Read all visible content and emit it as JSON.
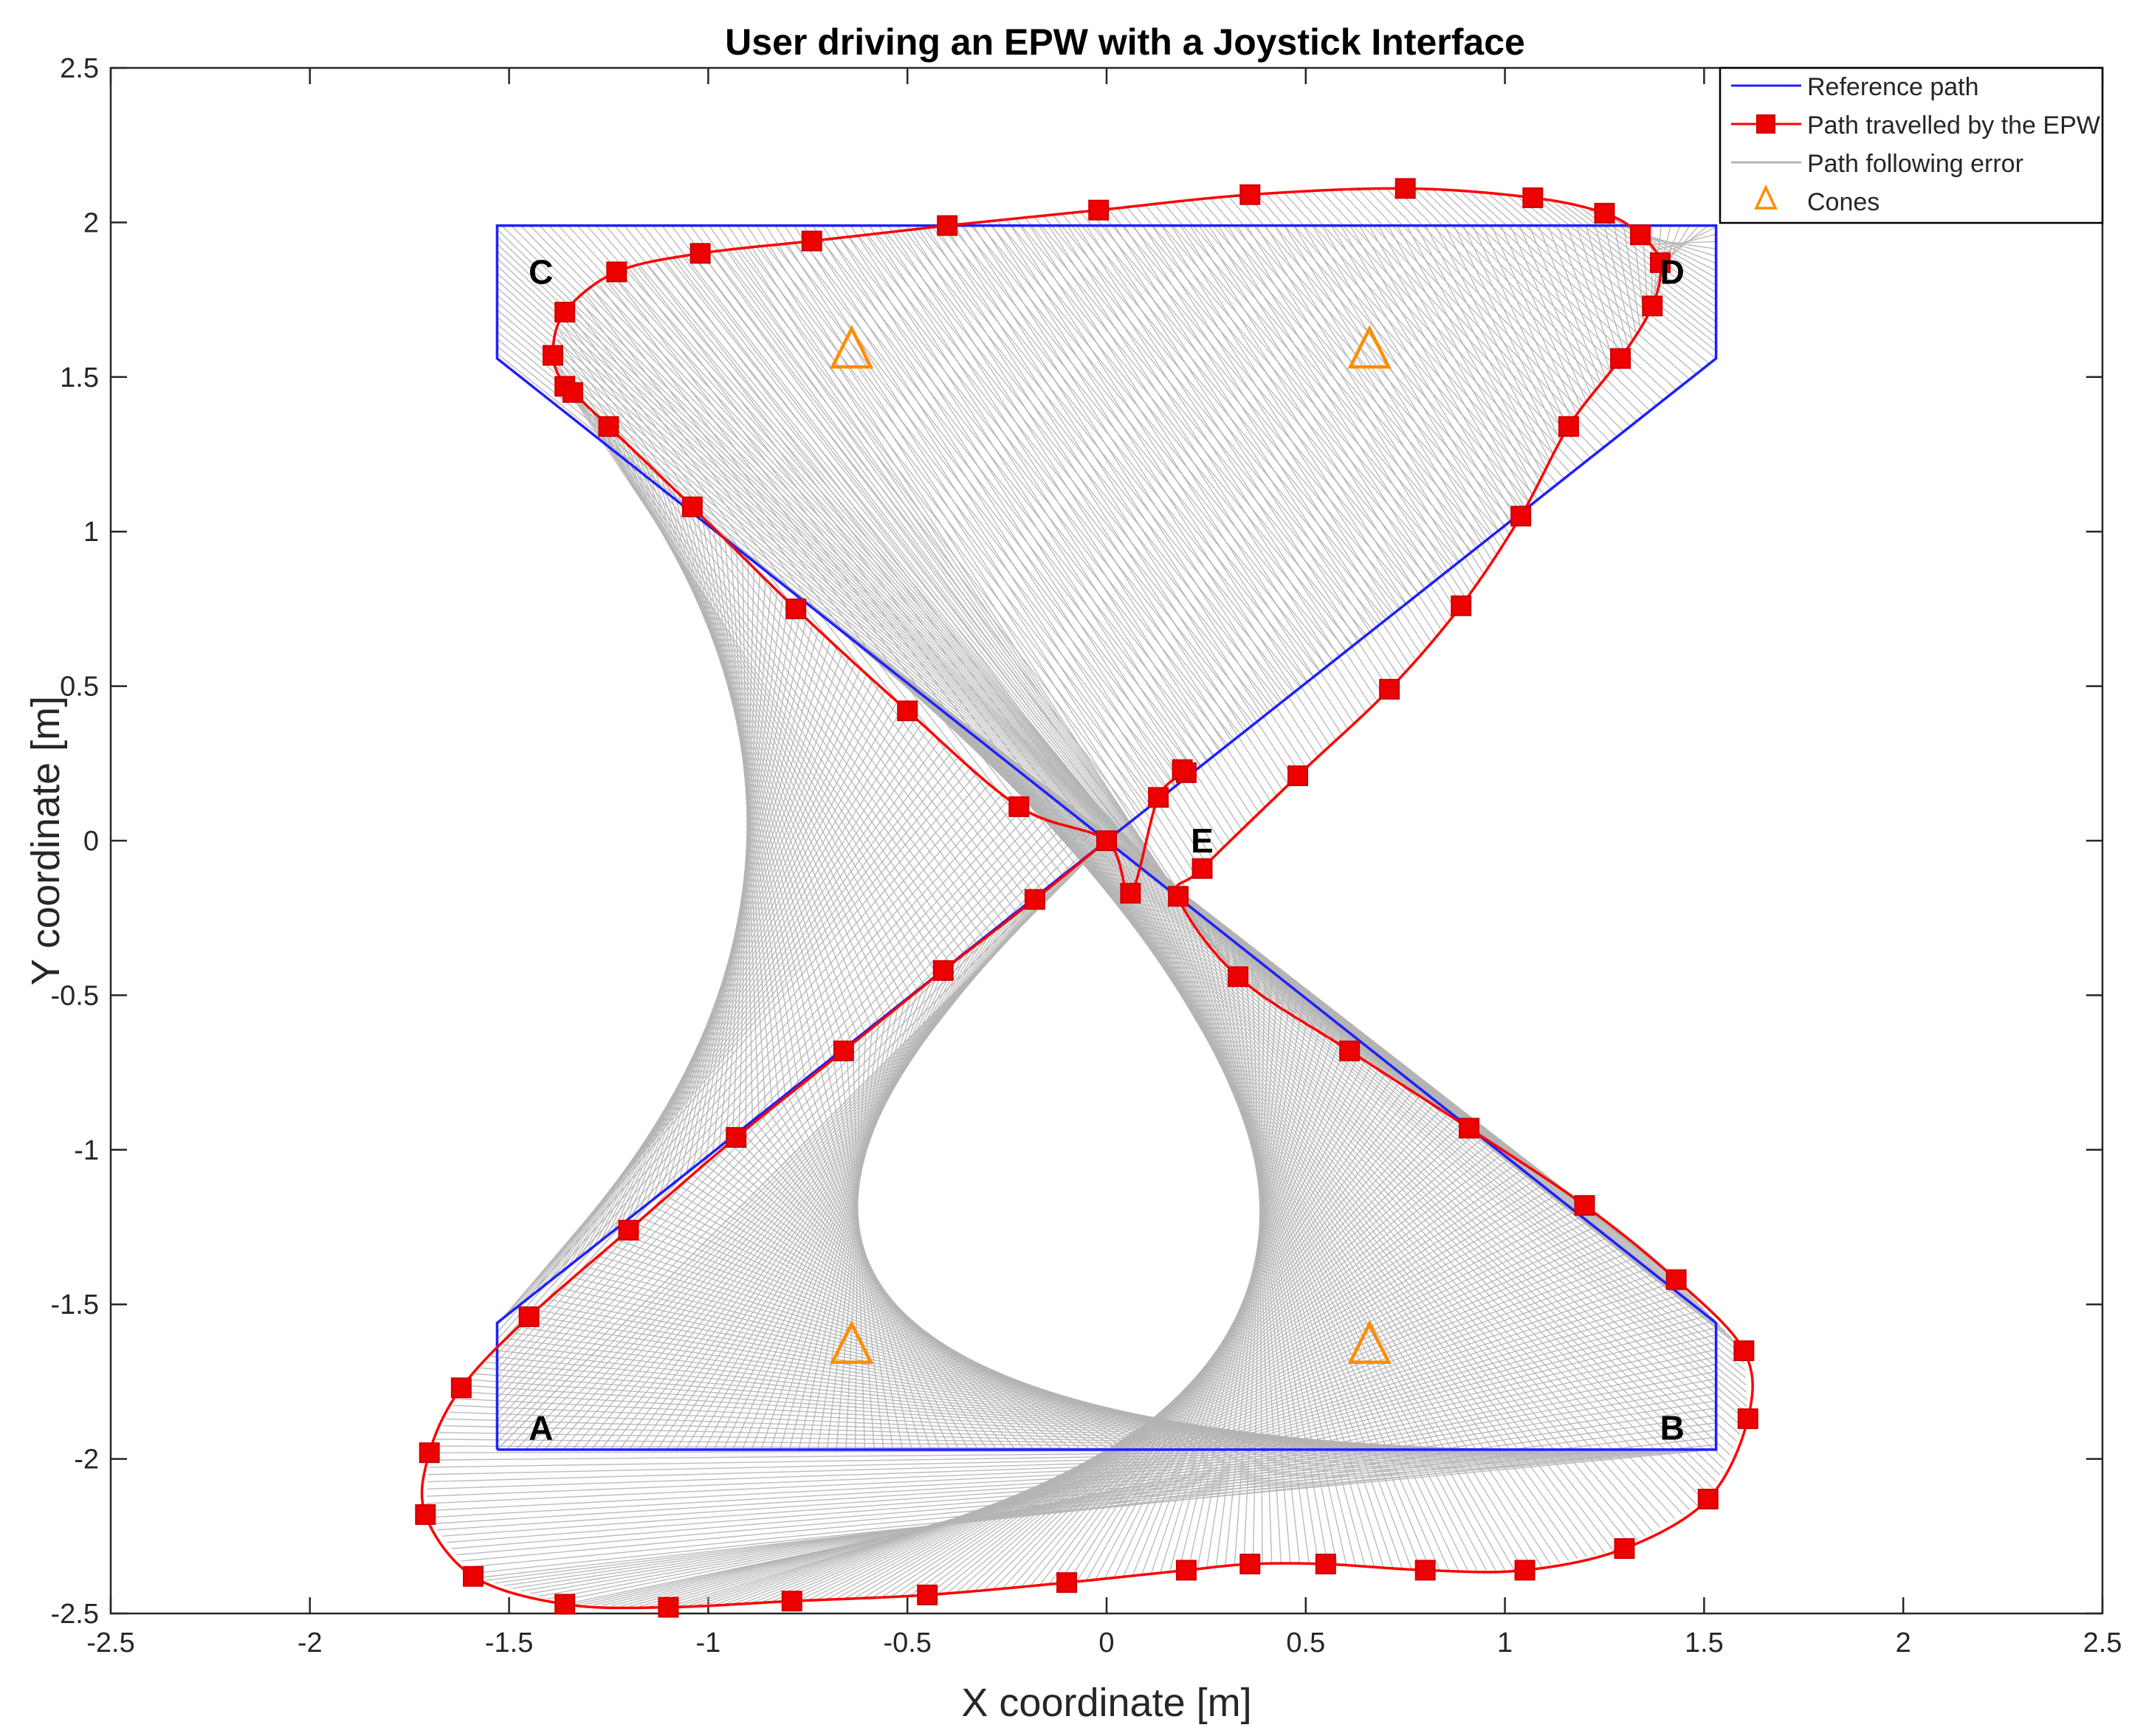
{
  "chart_data": {
    "type": "line",
    "title": "User driving an EPW with a Joystick Interface",
    "xlabel": "X coordinate [m]",
    "ylabel": "Y coordinate [m]",
    "xlim": [
      -2.5,
      2.5
    ],
    "ylim": [
      -2.5,
      2.5
    ],
    "xticks": [
      -2.5,
      -2,
      -1.5,
      -1,
      -0.5,
      0,
      0.5,
      1,
      1.5,
      2,
      2.5
    ],
    "yticks": [
      -2.5,
      -2,
      -1.5,
      -1,
      -0.5,
      0,
      0.5,
      1,
      1.5,
      2,
      2.5
    ],
    "xtick_labels": [
      "-2.5",
      "-2",
      "-1.5",
      "-1",
      "-0.5",
      "0",
      "0.5",
      "1",
      "1.5",
      "2",
      "2.5"
    ],
    "ytick_labels": [
      "-2.5",
      "-2",
      "-1.5",
      "-1",
      "-0.5",
      "0",
      "0.5",
      "1",
      "1.5",
      "2",
      "2.5"
    ],
    "grid": false,
    "legend_position": "top-right",
    "legend": [
      {
        "label": "Reference path",
        "marker": "line",
        "color": "#1f1fff"
      },
      {
        "label": "Path travelled by the EPW",
        "marker": "line-square",
        "color": "#ff0000"
      },
      {
        "label": "Path following error",
        "marker": "line",
        "color": "#b4b4b4"
      },
      {
        "label": "Cones",
        "marker": "triangle",
        "color": "#ff8c00"
      }
    ],
    "series": [
      {
        "name": "Reference path",
        "color": "#1f1fff",
        "points": [
          [
            -1.53,
            -1.97
          ],
          [
            1.53,
            -1.97
          ],
          [
            1.53,
            -1.56
          ],
          [
            -1.53,
            1.56
          ],
          [
            -1.53,
            1.99
          ],
          [
            1.53,
            1.99
          ],
          [
            1.53,
            1.56
          ],
          [
            -1.53,
            -1.56
          ],
          [
            -1.53,
            -1.97
          ]
        ]
      },
      {
        "name": "Path travelled by the EPW",
        "color": "#ff0000",
        "points": [
          [
            0,
            0
          ],
          [
            -0.18,
            -0.19
          ],
          [
            -0.41,
            -0.42
          ],
          [
            -0.66,
            -0.68
          ],
          [
            -0.93,
            -0.96
          ],
          [
            -1.2,
            -1.26
          ],
          [
            -1.45,
            -1.54
          ],
          [
            -1.62,
            -1.77
          ],
          [
            -1.7,
            -1.98
          ],
          [
            -1.71,
            -2.18
          ],
          [
            -1.59,
            -2.38
          ],
          [
            -1.36,
            -2.47
          ],
          [
            -1.1,
            -2.48
          ],
          [
            -0.79,
            -2.46
          ],
          [
            -0.45,
            -2.44
          ],
          [
            -0.1,
            -2.4
          ],
          [
            0.2,
            -2.36
          ],
          [
            0.36,
            -2.34
          ],
          [
            0.55,
            -2.34
          ],
          [
            0.8,
            -2.36
          ],
          [
            1.05,
            -2.36
          ],
          [
            1.3,
            -2.29
          ],
          [
            1.51,
            -2.13
          ],
          [
            1.61,
            -1.87
          ],
          [
            1.6,
            -1.65
          ],
          [
            1.43,
            -1.42
          ],
          [
            1.2,
            -1.18
          ],
          [
            0.91,
            -0.93
          ],
          [
            0.61,
            -0.68
          ],
          [
            0.33,
            -0.44
          ],
          [
            0.18,
            -0.18
          ],
          [
            0.24,
            -0.09
          ],
          [
            0.48,
            0.21
          ],
          [
            0.71,
            0.49
          ],
          [
            0.89,
            0.76
          ],
          [
            1.04,
            1.05
          ],
          [
            1.16,
            1.34
          ],
          [
            1.29,
            1.56
          ],
          [
            1.37,
            1.73
          ],
          [
            1.39,
            1.87
          ],
          [
            1.34,
            1.96
          ],
          [
            1.25,
            2.03
          ],
          [
            1.07,
            2.08
          ],
          [
            0.75,
            2.11
          ],
          [
            0.36,
            2.09
          ],
          [
            -0.02,
            2.04
          ],
          [
            -0.4,
            1.99
          ],
          [
            -0.74,
            1.94
          ],
          [
            -1.02,
            1.9
          ],
          [
            -1.23,
            1.84
          ],
          [
            -1.36,
            1.71
          ],
          [
            -1.39,
            1.57
          ],
          [
            -1.36,
            1.47
          ],
          [
            -1.34,
            1.45
          ],
          [
            -1.25,
            1.34
          ],
          [
            -1.04,
            1.08
          ],
          [
            -0.78,
            0.75
          ],
          [
            -0.5,
            0.42
          ],
          [
            -0.22,
            0.11
          ],
          [
            0,
            0
          ],
          [
            0.06,
            -0.17
          ],
          [
            0.13,
            0.14
          ],
          [
            0.2,
            0.22
          ],
          [
            0.19,
            0.23
          ]
        ]
      },
      {
        "name": "Path travelled by the EPW markers",
        "color": "#ff0000",
        "points": [
          [
            0,
            0
          ],
          [
            -0.18,
            -0.19
          ],
          [
            -0.41,
            -0.42
          ],
          [
            -0.66,
            -0.68
          ],
          [
            -0.93,
            -0.96
          ],
          [
            -1.2,
            -1.26
          ],
          [
            -1.45,
            -1.54
          ],
          [
            -1.62,
            -1.77
          ],
          [
            -1.7,
            -1.98
          ],
          [
            -1.71,
            -2.18
          ],
          [
            -1.59,
            -2.38
          ],
          [
            -1.36,
            -2.47
          ],
          [
            -1.1,
            -2.48
          ],
          [
            -0.79,
            -2.46
          ],
          [
            -0.45,
            -2.44
          ],
          [
            -0.1,
            -2.4
          ],
          [
            0.2,
            -2.36
          ],
          [
            0.36,
            -2.34
          ],
          [
            0.55,
            -2.34
          ],
          [
            0.8,
            -2.36
          ],
          [
            1.05,
            -2.36
          ],
          [
            1.3,
            -2.29
          ],
          [
            1.51,
            -2.13
          ],
          [
            1.61,
            -1.87
          ],
          [
            1.6,
            -1.65
          ],
          [
            1.43,
            -1.42
          ],
          [
            1.2,
            -1.18
          ],
          [
            0.91,
            -0.93
          ],
          [
            0.61,
            -0.68
          ],
          [
            0.33,
            -0.44
          ],
          [
            0.18,
            -0.18
          ],
          [
            0.24,
            -0.09
          ],
          [
            0.48,
            0.21
          ],
          [
            0.71,
            0.49
          ],
          [
            0.89,
            0.76
          ],
          [
            1.04,
            1.05
          ],
          [
            1.16,
            1.34
          ],
          [
            1.29,
            1.56
          ],
          [
            1.37,
            1.73
          ],
          [
            1.39,
            1.87
          ],
          [
            1.34,
            1.96
          ],
          [
            1.25,
            2.03
          ],
          [
            1.07,
            2.08
          ],
          [
            0.75,
            2.11
          ],
          [
            0.36,
            2.09
          ],
          [
            -0.02,
            2.04
          ],
          [
            -0.4,
            1.99
          ],
          [
            -0.74,
            1.94
          ],
          [
            -1.02,
            1.9
          ],
          [
            -1.23,
            1.84
          ],
          [
            -1.36,
            1.71
          ],
          [
            -1.39,
            1.57
          ],
          [
            -1.36,
            1.47
          ],
          [
            -1.34,
            1.45
          ],
          [
            -1.25,
            1.34
          ],
          [
            -1.04,
            1.08
          ],
          [
            -0.78,
            0.75
          ],
          [
            -0.5,
            0.42
          ],
          [
            -0.22,
            0.11
          ],
          [
            0.06,
            -0.17
          ],
          [
            0.13,
            0.14
          ],
          [
            0.2,
            0.22
          ],
          [
            0.19,
            0.23
          ]
        ]
      }
    ],
    "cones": [
      [
        -0.64,
        1.59
      ],
      [
        0.66,
        1.59
      ],
      [
        -0.64,
        -1.63
      ],
      [
        0.66,
        -1.63
      ]
    ],
    "point_labels": [
      {
        "text": "A",
        "x": -1.42,
        "y": -1.9
      },
      {
        "text": "B",
        "x": 1.42,
        "y": -1.9
      },
      {
        "text": "C",
        "x": -1.42,
        "y": 1.84
      },
      {
        "text": "D",
        "x": 1.42,
        "y": 1.84
      },
      {
        "text": "E",
        "x": 0.24,
        "y": 0.0
      }
    ]
  }
}
